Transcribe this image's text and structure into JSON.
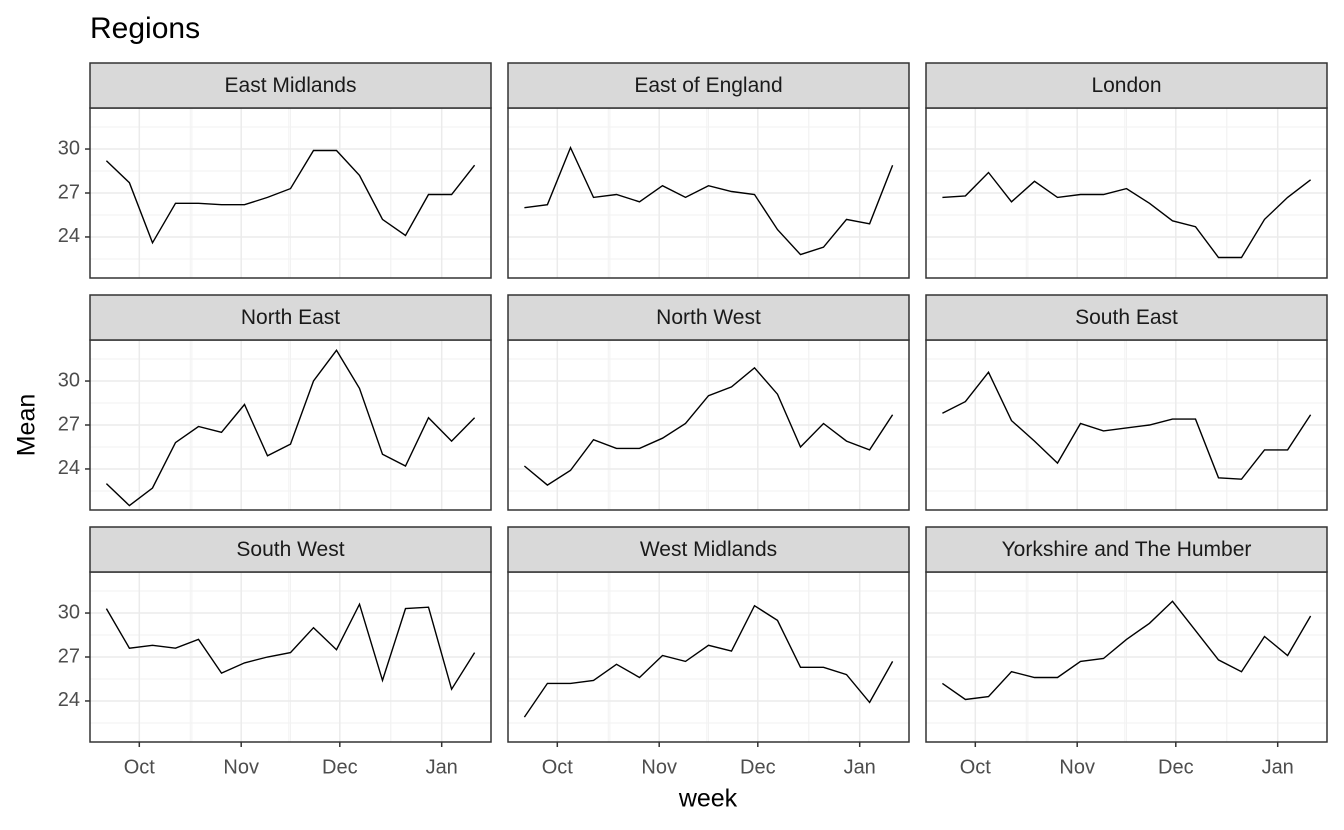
{
  "chart_data": {
    "type": "line",
    "title": "Regions",
    "xlabel": "week",
    "ylabel": "Mean",
    "color": "#000000",
    "grid": true,
    "x": [
      "09-21",
      "09-28",
      "10-05",
      "10-12",
      "10-19",
      "10-26",
      "11-02",
      "11-09",
      "11-16",
      "11-23",
      "11-30",
      "12-07",
      "12-14",
      "12-21",
      "12-28",
      "01-04",
      "01-11"
    ],
    "xlim": [
      "09-16",
      "01-16"
    ],
    "xticks": [
      {
        "value": "10-01",
        "label": "Oct"
      },
      {
        "value": "11-01",
        "label": "Nov"
      },
      {
        "value": "12-01",
        "label": "Dec"
      },
      {
        "value": "01-01",
        "label": "Jan"
      }
    ],
    "ylim": [
      21.2,
      32.8
    ],
    "yticks": [
      24,
      27,
      30
    ],
    "facets": [
      {
        "name": "East Midlands",
        "values": [
          29.2,
          27.7,
          23.6,
          26.3,
          26.3,
          26.2,
          26.2,
          26.7,
          27.3,
          29.9,
          29.9,
          28.2,
          25.2,
          24.1,
          26.9,
          26.9,
          28.9
        ]
      },
      {
        "name": "East of England",
        "values": [
          26.0,
          26.2,
          30.1,
          26.7,
          26.9,
          26.4,
          27.5,
          26.7,
          27.5,
          27.1,
          26.9,
          24.5,
          22.8,
          23.3,
          25.2,
          24.9,
          28.9
        ]
      },
      {
        "name": "London",
        "values": [
          26.7,
          26.8,
          28.4,
          26.4,
          27.8,
          26.7,
          26.9,
          26.9,
          27.3,
          26.3,
          25.1,
          24.7,
          22.6,
          22.6,
          25.2,
          26.7,
          27.9
        ]
      },
      {
        "name": "North East",
        "values": [
          23.0,
          21.5,
          22.7,
          25.8,
          26.9,
          26.5,
          28.4,
          24.9,
          25.7,
          30.0,
          32.1,
          29.5,
          25.0,
          24.2,
          27.5,
          25.9,
          27.5
        ]
      },
      {
        "name": "North West",
        "values": [
          24.2,
          22.9,
          23.9,
          26.0,
          25.4,
          25.4,
          26.1,
          27.1,
          29.0,
          29.6,
          30.9,
          29.1,
          25.5,
          27.1,
          25.9,
          25.3,
          27.7
        ]
      },
      {
        "name": "South East",
        "values": [
          27.8,
          28.6,
          30.6,
          27.3,
          25.9,
          24.4,
          27.1,
          26.6,
          26.8,
          27.0,
          27.4,
          27.4,
          23.4,
          23.3,
          25.3,
          25.3,
          27.7
        ]
      },
      {
        "name": "South West",
        "values": [
          30.3,
          27.6,
          27.8,
          27.6,
          28.2,
          25.9,
          26.6,
          27.0,
          27.3,
          29.0,
          27.5,
          30.6,
          25.4,
          30.3,
          30.4,
          24.8,
          27.3
        ]
      },
      {
        "name": "West Midlands",
        "values": [
          22.9,
          25.2,
          25.2,
          25.4,
          26.5,
          25.6,
          27.1,
          26.7,
          27.8,
          27.4,
          30.5,
          29.5,
          26.3,
          26.3,
          25.8,
          23.9,
          26.7
        ]
      },
      {
        "name": "Yorkshire and The Humber",
        "values": [
          25.2,
          24.1,
          24.3,
          26.0,
          25.6,
          25.6,
          26.7,
          26.9,
          28.2,
          29.3,
          30.8,
          28.8,
          26.8,
          26.0,
          28.4,
          27.1,
          29.8
        ]
      }
    ]
  }
}
